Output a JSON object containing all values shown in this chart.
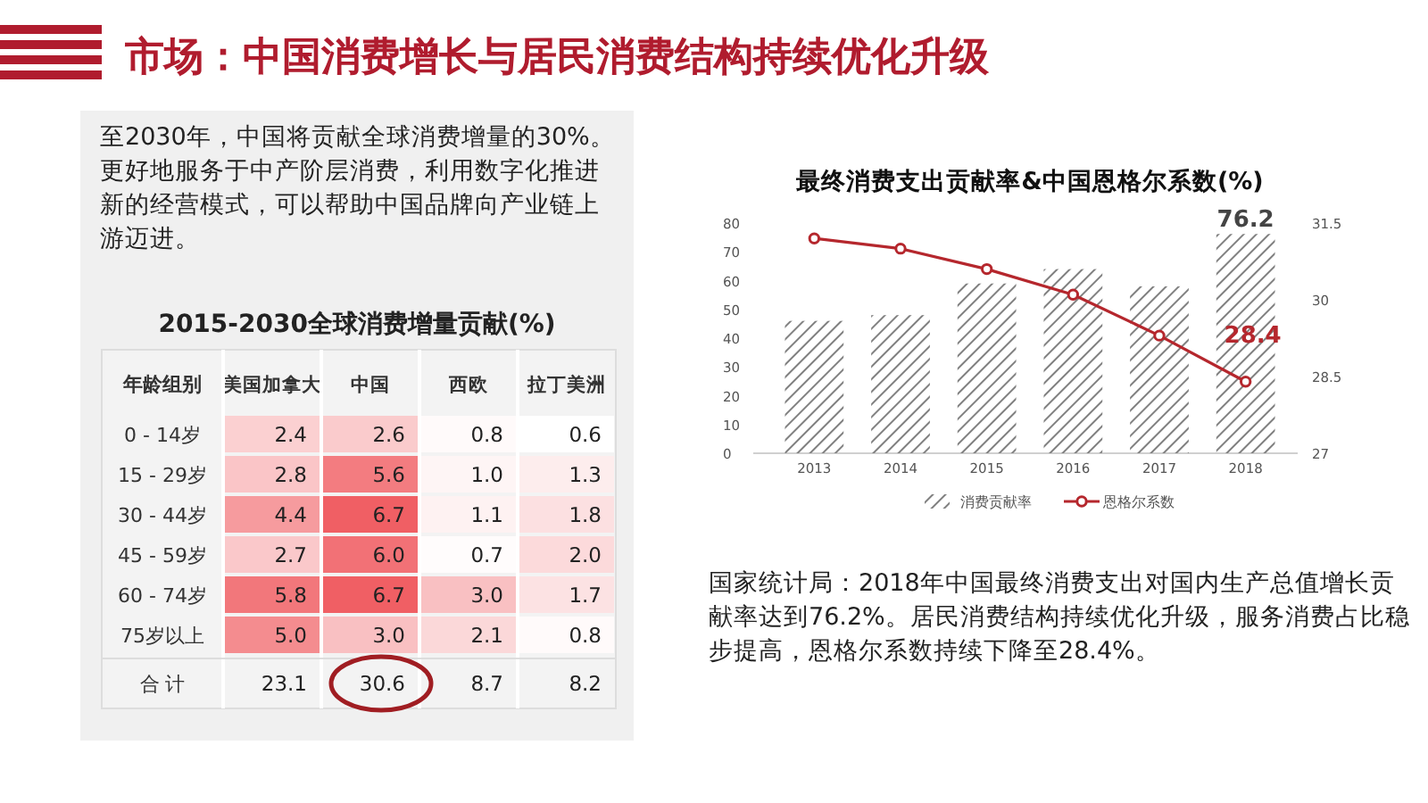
{
  "chart_data": [
    {
      "type": "other",
      "title": "市场：中国消费增长与居民消费结构持续优化升级"
    },
    {
      "type": "heatmap",
      "title": "2015-2030全球消费增量贡献(%)",
      "ylabel": "年龄组别",
      "categories": [
        "美国加拿大",
        "中国",
        "西欧",
        "拉丁美洲"
      ],
      "y_categories": [
        "0 - 14岁",
        "15 - 29岁",
        "30 - 44岁",
        "45 - 59岁",
        "60 - 74岁",
        "75岁以上"
      ],
      "cells": [
        [
          2.4,
          2.6,
          0.8,
          0.6
        ],
        [
          2.8,
          5.6,
          1.0,
          1.3
        ],
        [
          4.4,
          6.7,
          1.1,
          1.8
        ],
        [
          2.7,
          6.0,
          0.7,
          2.0
        ],
        [
          5.8,
          6.7,
          3.0,
          1.7
        ],
        [
          5.0,
          3.0,
          2.1,
          0.8
        ]
      ],
      "cell_labels": [
        [
          "2.4",
          "2.6",
          "0.8",
          "0.6"
        ],
        [
          "2.8",
          "5.6",
          "1.0",
          "1.3"
        ],
        [
          "4.4",
          "6.7",
          "1.1",
          "1.8"
        ],
        [
          "2.7",
          "6.0",
          "0.7",
          "2.0"
        ],
        [
          "5.8",
          "6.7",
          "3.0",
          "1.7"
        ],
        [
          "5.0",
          "3.0",
          "2.1",
          "0.8"
        ]
      ],
      "data_labels": true,
      "totals": [
        "23.1",
        "30.6",
        "8.7",
        "8.2"
      ],
      "annotations": [
        "至2030年，中国将贡献全球消费增量的30%。更好地服务于中产阶层消费，利用数字化推进新的经营模式，可以帮助中国品牌向产业链上游迈进。",
        "合 计"
      ]
    },
    {
      "type": "bar",
      "title": "最终消费支出贡献率&中国恩格尔系数(%)",
      "categories": [
        "2013",
        "2014",
        "2015",
        "2016",
        "2017",
        "2018"
      ],
      "series": [
        {
          "name": "消费贡献率",
          "color": "#808080",
          "values": [
            46,
            48,
            59,
            64,
            58,
            76.2
          ],
          "value_labels": [
            null,
            null,
            null,
            null,
            null,
            "76.2"
          ]
        },
        {
          "name": "恩格尔系数",
          "type": "line",
          "axis": "y2",
          "color": "#b5272d",
          "values": [
            31.2,
            31.0,
            30.6,
            30.1,
            29.3,
            28.4
          ],
          "value_labels": [
            null,
            null,
            null,
            null,
            null,
            "28.4"
          ]
        }
      ],
      "ylim": [
        0,
        80
      ],
      "yticks": [
        0,
        10,
        20,
        30,
        40,
        50,
        60,
        70,
        80
      ],
      "y2lim": [
        27,
        31.5
      ],
      "y2ticks": [
        27,
        28.5,
        30,
        31.5
      ],
      "marker": "circle",
      "legend": "bottom",
      "annotations": [
        "国家统计局：2018年中国最终消费支出对国内生产总值增长贡献率达到76.2%。居民消费结构持续优化升级，服务消费占比稳步提高，恩格尔系数持续下降至28.4%。"
      ]
    }
  ]
}
